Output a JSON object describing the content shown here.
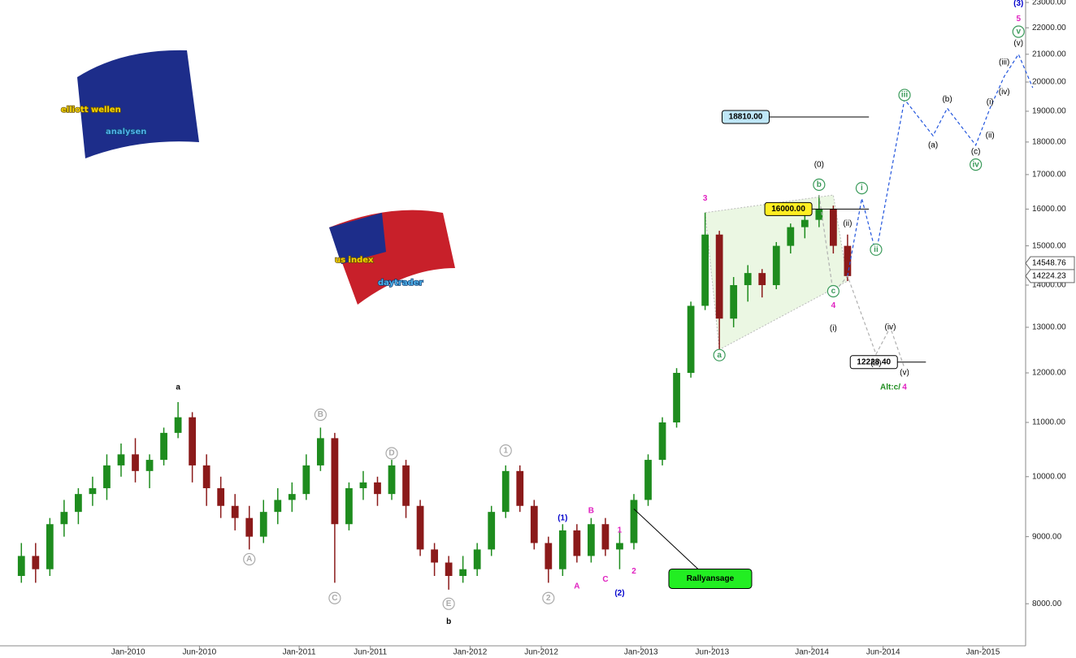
{
  "chart_data": {
    "type": "candlestick",
    "log_scale": true,
    "up_color": "#1e8c1e",
    "down_color": "#8b1a1a",
    "xlim": [
      "2009-04",
      "2015-04"
    ],
    "xticks": [
      {
        "value": "2010-01",
        "label": "Jan-2010"
      },
      {
        "value": "2010-06",
        "label": "Jun-2010"
      },
      {
        "value": "2011-01",
        "label": "Jan-2011"
      },
      {
        "value": "2011-06",
        "label": "Jun-2011"
      },
      {
        "value": "2012-01",
        "label": "Jan-2012"
      },
      {
        "value": "2012-06",
        "label": "Jun-2012"
      },
      {
        "value": "2013-01",
        "label": "Jan-2013"
      },
      {
        "value": "2013-06",
        "label": "Jun-2013"
      },
      {
        "value": "2014-01",
        "label": "Jan-2014"
      },
      {
        "value": "2014-06",
        "label": "Jun-2014"
      },
      {
        "value": "2015-01",
        "label": "Jan-2015"
      }
    ],
    "ylim": [
      7430,
      23100
    ],
    "yticks": [
      {
        "value": 8000,
        "label": "8000.00"
      },
      {
        "value": 9000,
        "label": "9000.00"
      },
      {
        "value": 10000,
        "label": "10000.00"
      },
      {
        "value": 11000,
        "label": "11000.00"
      },
      {
        "value": 12000,
        "label": "12000.00"
      },
      {
        "value": 13000,
        "label": "13000.00"
      },
      {
        "value": 14000,
        "label": "14000.00"
      },
      {
        "value": 15000,
        "label": "15000.00"
      },
      {
        "value": 16000,
        "label": "16000.00"
      },
      {
        "value": 17000,
        "label": "17000.00"
      },
      {
        "value": 18000,
        "label": "18000.00"
      },
      {
        "value": 19000,
        "label": "19000.00"
      },
      {
        "value": 20000,
        "label": "20000.00"
      },
      {
        "value": 21000,
        "label": "21000.00"
      },
      {
        "value": 22000,
        "label": "22000.00"
      },
      {
        "value": 23000,
        "label": "23000.00"
      }
    ],
    "candles": {
      "dates": [
        "2009-05",
        "2009-06",
        "2009-07",
        "2009-08",
        "2009-09",
        "2009-10",
        "2009-11",
        "2009-12",
        "2010-01",
        "2010-02",
        "2010-03",
        "2010-04",
        "2010-05",
        "2010-06",
        "2010-07",
        "2010-08",
        "2010-09",
        "2010-10",
        "2010-11",
        "2010-12",
        "2011-01",
        "2011-02",
        "2011-03",
        "2011-04",
        "2011-05",
        "2011-06",
        "2011-07",
        "2011-08",
        "2011-09",
        "2011-10",
        "2011-11",
        "2011-12",
        "2012-01",
        "2012-02",
        "2012-03",
        "2012-04",
        "2012-05",
        "2012-06",
        "2012-07",
        "2012-08",
        "2012-09",
        "2012-10",
        "2012-11",
        "2012-12",
        "2013-01",
        "2013-02",
        "2013-03",
        "2013-04",
        "2013-05",
        "2013-06",
        "2013-07",
        "2013-08",
        "2013-09",
        "2013-10",
        "2013-11",
        "2013-12",
        "2014-01",
        "2014-02",
        "2014-03"
      ],
      "open": [
        8400,
        8700,
        8500,
        9200,
        9400,
        9700,
        9800,
        10200,
        10400,
        10100,
        10300,
        10800,
        11100,
        10200,
        9800,
        9500,
        9300,
        9000,
        9400,
        9600,
        9700,
        10200,
        10700,
        9200,
        9800,
        9900,
        9700,
        10200,
        9500,
        8800,
        8600,
        8400,
        8500,
        8800,
        9400,
        10100,
        9500,
        8900,
        8500,
        9100,
        8700,
        9200,
        8800,
        8900,
        9600,
        10300,
        11000,
        12000,
        13500,
        15300,
        13200,
        14000,
        14300,
        14000,
        15000,
        15500,
        15700,
        16000,
        15000
      ],
      "high": [
        8900,
        8900,
        9300,
        9600,
        9800,
        10000,
        10400,
        10600,
        10700,
        10400,
        10900,
        11400,
        11200,
        10400,
        10000,
        9700,
        9500,
        9600,
        9800,
        9900,
        10400,
        10900,
        10800,
        9900,
        10100,
        10000,
        10300,
        10300,
        9600,
        8900,
        8700,
        8700,
        8900,
        9500,
        10200,
        10200,
        9600,
        9000,
        9200,
        9200,
        9300,
        9300,
        9100,
        9700,
        10400,
        11100,
        12100,
        13600,
        15900,
        15400,
        14200,
        14500,
        14400,
        15100,
        15600,
        15900,
        16400,
        16100,
        15300
      ],
      "low": [
        8300,
        8300,
        8400,
        9000,
        9200,
        9500,
        9600,
        10000,
        9900,
        9800,
        10200,
        10700,
        9900,
        9500,
        9300,
        9100,
        8800,
        8900,
        9200,
        9400,
        9600,
        10100,
        8300,
        9100,
        9600,
        9500,
        9600,
        9300,
        8700,
        8400,
        8200,
        8300,
        8400,
        8700,
        9300,
        9400,
        8800,
        8300,
        8400,
        8600,
        8600,
        8700,
        8500,
        8800,
        9500,
        10200,
        10900,
        11900,
        13400,
        12500,
        13000,
        13600,
        13700,
        13900,
        14800,
        15200,
        15500,
        14800,
        14100
      ],
      "close": [
        8700,
        8500,
        9200,
        9400,
        9700,
        9800,
        10200,
        10400,
        10100,
        10300,
        10800,
        11100,
        10200,
        9800,
        9500,
        9300,
        9000,
        9400,
        9600,
        9700,
        10200,
        10700,
        9200,
        9800,
        9900,
        9700,
        10200,
        9500,
        8800,
        8600,
        8400,
        8500,
        8800,
        9400,
        10100,
        9500,
        8900,
        8500,
        9100,
        8700,
        9200,
        8800,
        8900,
        9600,
        10300,
        11000,
        12000,
        13500,
        15300,
        13200,
        14000,
        14300,
        14000,
        15000,
        15500,
        15700,
        16000,
        15000,
        14224.23
      ]
    },
    "channel": {
      "x": [
        "2013-05",
        "2014-02",
        "2014-03",
        "2013-06"
      ],
      "y": [
        15900,
        16400,
        14100,
        12500
      ],
      "color": "#e6f5dc"
    },
    "series": [
      {
        "color": "#2255dd",
        "x": [
          "2014-03",
          "2014-04",
          "2014-05",
          "2014-07",
          "2014-09",
          "2014-10",
          "2014-12",
          "2015-01",
          "2015-02",
          "2015-03",
          "2015-04"
        ],
        "values": [
          14224.23,
          16300,
          14800,
          19400,
          18200,
          19100,
          17900,
          19100,
          20200,
          21000,
          19800
        ]
      },
      {
        "color": "#b0b0b0",
        "x": [
          "2014-01",
          "2014-02",
          "2014-03",
          "2014-05",
          "2014-06",
          "2014-07"
        ],
        "values": [
          16400,
          13800,
          14224.23,
          12400,
          13000,
          12100
        ]
      }
    ],
    "levels": [
      {
        "value": 18810,
        "label": "18810.00",
        "color": "#bfe7f7",
        "from": "2013-10",
        "to": "2014-05"
      },
      {
        "value": 16000,
        "label": "16000.00",
        "color": "#ffee22",
        "from": "2014-01",
        "to": "2014-05"
      },
      {
        "value": 12228.4,
        "label": "12228.40",
        "color": "#ffffff",
        "from": "2014-07",
        "to": "2014-09"
      }
    ],
    "price_tags": [
      {
        "value": 14548.76,
        "label": "14548.76"
      },
      {
        "value": 14224.23,
        "label": "14224.23"
      }
    ],
    "callout": {
      "text": "Rallyansage",
      "x": "2012-12",
      "y": 9450
    },
    "wave_labels": [
      {
        "text": "a",
        "x": "2010-04",
        "y": 11700,
        "color": "#000000"
      },
      {
        "text": "b",
        "x": "2011-11",
        "y": 7750,
        "color": "#000000"
      },
      {
        "text": "A",
        "x": "2010-09",
        "y": 8650,
        "color": "#aaaaaa",
        "circle": true
      },
      {
        "text": "B",
        "x": "2011-02",
        "y": 11150,
        "color": "#aaaaaa",
        "circle": true
      },
      {
        "text": "C",
        "x": "2011-03",
        "y": 8080,
        "color": "#aaaaaa",
        "circle": true
      },
      {
        "text": "D",
        "x": "2011-07",
        "y": 10420,
        "color": "#aaaaaa",
        "circle": true
      },
      {
        "text": "E",
        "x": "2011-11",
        "y": 8000,
        "color": "#aaaaaa",
        "circle": true
      },
      {
        "text": "1",
        "x": "2012-03",
        "y": 10470,
        "color": "#aaaaaa",
        "circle": true
      },
      {
        "text": "2",
        "x": "2012-06",
        "y": 8080,
        "color": "#aaaaaa",
        "circle": true
      },
      {
        "text": "(1)",
        "x": "2012-07",
        "y": 9300,
        "color": "#0000cc"
      },
      {
        "text": "(2)",
        "x": "2012-11",
        "y": 8150,
        "color": "#0000cc"
      },
      {
        "text": "A",
        "x": "2012-08",
        "y": 8250,
        "color": "#e020c0"
      },
      {
        "text": "B",
        "x": "2012-09",
        "y": 9420,
        "color": "#e020c0"
      },
      {
        "text": "C",
        "x": "2012-10",
        "y": 8350,
        "color": "#e020c0"
      },
      {
        "text": "1",
        "x": "2012-11",
        "y": 9100,
        "color": "#e020c0"
      },
      {
        "text": "2",
        "x": "2012-12",
        "y": 8470,
        "color": "#e020c0"
      },
      {
        "text": "3",
        "x": "2013-05",
        "y": 16300,
        "color": "#e020c0"
      },
      {
        "text": "a",
        "x": "2013-06",
        "y": 12380,
        "color": "#3a9a5a",
        "circle": true
      },
      {
        "text": "b",
        "x": "2014-01",
        "y": 16700,
        "color": "#3a9a5a",
        "circle": true
      },
      {
        "text": "(0)",
        "x": "2014-01",
        "y": 17300,
        "color": "#000000"
      },
      {
        "text": "c",
        "x": "2014-02",
        "y": 13850,
        "color": "#3a9a5a",
        "circle": true
      },
      {
        "text": "4",
        "x": "2014-02",
        "y": 13500,
        "color": "#e020c0"
      },
      {
        "text": "(i)",
        "x": "2014-02",
        "y": 12970,
        "color": "#000000"
      },
      {
        "text": "(ii)",
        "x": "2014-03",
        "y": 15600,
        "color": "#000000"
      },
      {
        "text": "i",
        "x": "2014-04",
        "y": 16600,
        "color": "#3a9a5a",
        "circle": true
      },
      {
        "text": "ii",
        "x": "2014-05",
        "y": 14900,
        "color": "#3a9a5a",
        "circle": true
      },
      {
        "text": "iii",
        "x": "2014-07",
        "y": 19550,
        "color": "#3a9a5a",
        "circle": true
      },
      {
        "text": "(a)",
        "x": "2014-09",
        "y": 17900,
        "color": "#000000"
      },
      {
        "text": "(b)",
        "x": "2014-10",
        "y": 19400,
        "color": "#000000"
      },
      {
        "text": "(c)",
        "x": "2014-12",
        "y": 17700,
        "color": "#000000"
      },
      {
        "text": "iv",
        "x": "2014-12",
        "y": 17300,
        "color": "#3a9a5a",
        "circle": true
      },
      {
        "text": "(i)",
        "x": "2015-01",
        "y": 19300,
        "color": "#000000"
      },
      {
        "text": "(ii)",
        "x": "2015-01",
        "y": 18200,
        "color": "#000000"
      },
      {
        "text": "(iii)",
        "x": "2015-02",
        "y": 20700,
        "color": "#000000"
      },
      {
        "text": "(iv)",
        "x": "2015-02",
        "y": 19650,
        "color": "#000000"
      },
      {
        "text": "(v)",
        "x": "2015-03",
        "y": 21400,
        "color": "#000000"
      },
      {
        "text": "v",
        "x": "2015-03",
        "y": 21850,
        "color": "#3a9a5a",
        "circle": true
      },
      {
        "text": "5",
        "x": "2015-03",
        "y": 22350,
        "color": "#e020c0"
      },
      {
        "text": "(3)",
        "x": "2015-03",
        "y": 22950,
        "color": "#0000cc"
      },
      {
        "text": "(iii)",
        "x": "2014-05",
        "y": 12200,
        "color": "#000000"
      },
      {
        "text": "(iv)",
        "x": "2014-06",
        "y": 13000,
        "color": "#000000"
      },
      {
        "text": "(v)",
        "x": "2014-07",
        "y": 12000,
        "color": "#000000"
      },
      {
        "text": "Alt:c/",
        "x": "2014-06",
        "y": 11700,
        "color": "#1e8c1e"
      },
      {
        "text": "4",
        "x": "2014-07",
        "y": 11700,
        "color": "#e020c0"
      }
    ]
  },
  "logos": {
    "top": [
      "elliott wellen",
      "analysen"
    ],
    "middle": [
      "us index",
      "daytrader"
    ]
  }
}
